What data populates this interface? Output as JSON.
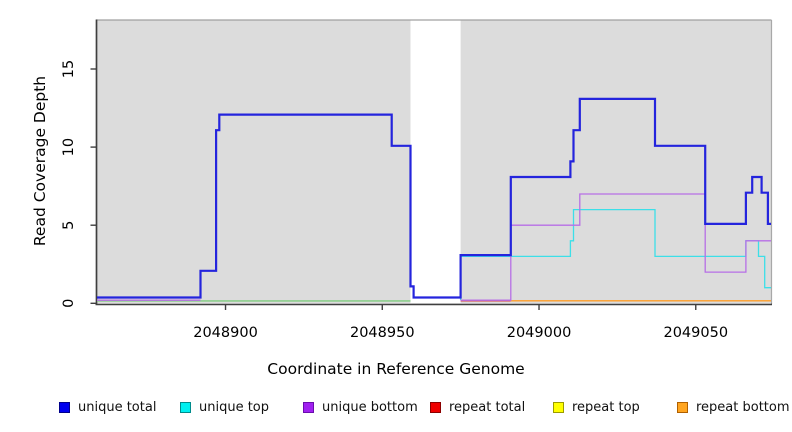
{
  "chart_data": {
    "type": "line",
    "subtype": "step-coverage-plot",
    "title": "",
    "xlabel": "Coordinate in Reference Genome",
    "ylabel": "Read Coverage Depth",
    "xlim": [
      2048859,
      2049074
    ],
    "ylim": [
      0,
      18
    ],
    "x_ticks": [
      2048900,
      2048950,
      2049000,
      2049050
    ],
    "y_ticks": [
      0,
      5,
      10,
      15
    ],
    "grid": false,
    "legend_position": "bottom",
    "plot_bg": "#dcdcdc",
    "background_bands": [
      [
        2048859,
        2048959
      ],
      [
        2048975,
        2049074
      ]
    ],
    "gap_region": [
      2048959,
      2048975
    ],
    "series": [
      {
        "id": "overlap-baseline",
        "name": "overlap baseline",
        "label": "top+bottom overlap at depth 0 (renders green)",
        "color": "#7ecb7e",
        "segments": [
          [
            [
              2048859,
              0
            ],
            [
              2048959,
              0
            ]
          ]
        ]
      },
      {
        "id": "repeat-total",
        "name": "repeat total",
        "color": "#d34040",
        "segments": [
          [
            [
              2048975,
              0
            ],
            [
              2048991,
              0
            ]
          ]
        ]
      },
      {
        "id": "repeat-bottom",
        "name": "repeat bottom",
        "color": "#ff9d26",
        "segments": [
          [
            [
              2048991,
              0
            ],
            [
              2049074,
              0
            ]
          ]
        ]
      },
      {
        "id": "unique-top",
        "name": "unique top",
        "color": "#3cdfe8",
        "segments": [
          [
            [
              2048975,
              0
            ],
            [
              2048975,
              3
            ],
            [
              2049010,
              3
            ],
            [
              2049010,
              4
            ],
            [
              2049011,
              4
            ],
            [
              2049011,
              6
            ],
            [
              2049037,
              6
            ],
            [
              2049037,
              3
            ],
            [
              2049066,
              3
            ],
            [
              2049066,
              4
            ],
            [
              2049070,
              4
            ],
            [
              2049070,
              3
            ],
            [
              2049072,
              3
            ],
            [
              2049072,
              1
            ],
            [
              2049074,
              1
            ]
          ]
        ]
      },
      {
        "id": "unique-bottom",
        "name": "unique bottom",
        "color": "#b76fe6",
        "segments": [
          [
            [
              2048859,
              0
            ],
            [
              2048892,
              0
            ]
          ],
          [
            [
              2048975,
              0
            ],
            [
              2048991,
              0
            ],
            [
              2048991,
              5
            ],
            [
              2049013,
              5
            ],
            [
              2049013,
              7
            ],
            [
              2049053,
              7
            ],
            [
              2049053,
              2
            ],
            [
              2049066,
              2
            ],
            [
              2049066,
              4
            ],
            [
              2049074,
              4
            ]
          ]
        ]
      },
      {
        "id": "unique-total",
        "name": "unique total",
        "color": "#2424dd",
        "segments": [
          [
            [
              2048859,
              0
            ],
            [
              2048892,
              0
            ],
            [
              2048892,
              2
            ],
            [
              2048897,
              2
            ],
            [
              2048897,
              11
            ],
            [
              2048898,
              11
            ],
            [
              2048898,
              12
            ],
            [
              2048953,
              12
            ],
            [
              2048953,
              10
            ],
            [
              2048959,
              10
            ],
            [
              2048959,
              1
            ],
            [
              2048960,
              1
            ],
            [
              2048960,
              0
            ],
            [
              2048975,
              0
            ],
            [
              2048975,
              3
            ],
            [
              2048991,
              3
            ],
            [
              2048991,
              8
            ],
            [
              2049010,
              8
            ],
            [
              2049010,
              9
            ],
            [
              2049011,
              9
            ],
            [
              2049011,
              11
            ],
            [
              2049013,
              11
            ],
            [
              2049013,
              13
            ],
            [
              2049037,
              13
            ],
            [
              2049037,
              10
            ],
            [
              2049053,
              10
            ],
            [
              2049053,
              5
            ],
            [
              2049066,
              5
            ],
            [
              2049066,
              7
            ],
            [
              2049068,
              7
            ],
            [
              2049068,
              8
            ],
            [
              2049071,
              8
            ],
            [
              2049071,
              7
            ],
            [
              2049073,
              7
            ],
            [
              2049073,
              5
            ],
            [
              2049074,
              5
            ]
          ]
        ]
      }
    ],
    "legend": {
      "items": [
        {
          "label": "unique total",
          "fill": "#0000ee",
          "border": "#00008b"
        },
        {
          "label": "unique top",
          "fill": "#00f0f0",
          "border": "#008b8b"
        },
        {
          "label": "unique bottom",
          "fill": "#a020f0",
          "border": "#6a0dad"
        },
        {
          "label": "repeat total",
          "fill": "#ee0000",
          "border": "#8b0000"
        },
        {
          "label": "repeat top",
          "fill": "#ffff00",
          "border": "#9b9b00"
        },
        {
          "label": "repeat bottom",
          "fill": "#ffa520",
          "border": "#b06000"
        }
      ]
    }
  }
}
